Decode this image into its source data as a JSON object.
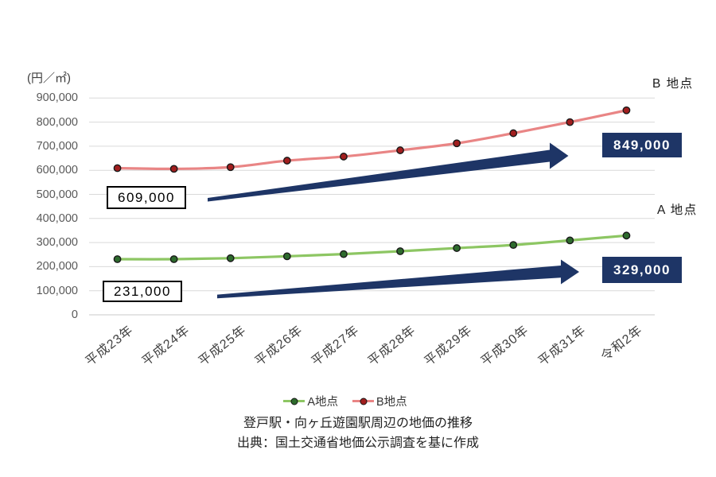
{
  "unit_label": "(円／㎡)",
  "labels": {
    "b_point": "B 地点",
    "a_point": "A 地点"
  },
  "callouts": {
    "b_start": "609,000",
    "b_end": "849,000",
    "a_start": "231,000",
    "a_end": "329,000"
  },
  "caption": "登戸駅・向ヶ丘遊園駅周辺の地価の推移",
  "source": "出典：国土交通省地価公示調査を基に作成",
  "colors": {
    "navy": "#1e3566",
    "grid": "#d9d9d9",
    "grid_zero": "#c9c9c9",
    "axis_text": "#595959"
  },
  "chart_data": {
    "type": "line",
    "categories": [
      "平成23年",
      "平成24年",
      "平成25年",
      "平成26年",
      "平成27年",
      "平成28年",
      "平成29年",
      "平成30年",
      "平成31年",
      "令和2年"
    ],
    "series": [
      {
        "name": "A地点",
        "color": "#8dc663",
        "marker_color": "#2d6a2d",
        "values": [
          231000,
          231000,
          235000,
          243000,
          252000,
          264000,
          277000,
          290000,
          309000,
          329000
        ]
      },
      {
        "name": "B地点",
        "color": "#e98585",
        "marker_color": "#a11e1e",
        "values": [
          609000,
          606000,
          613000,
          640000,
          657000,
          683000,
          712000,
          754000,
          800000,
          849000
        ]
      }
    ],
    "ylim": [
      0,
      900000
    ],
    "ytick_step": 100000,
    "grid": true,
    "legend_position": "bottom",
    "annotations": [
      "609,000 → 849,000 (B地点)",
      "231,000 → 329,000 (A地点)"
    ]
  }
}
